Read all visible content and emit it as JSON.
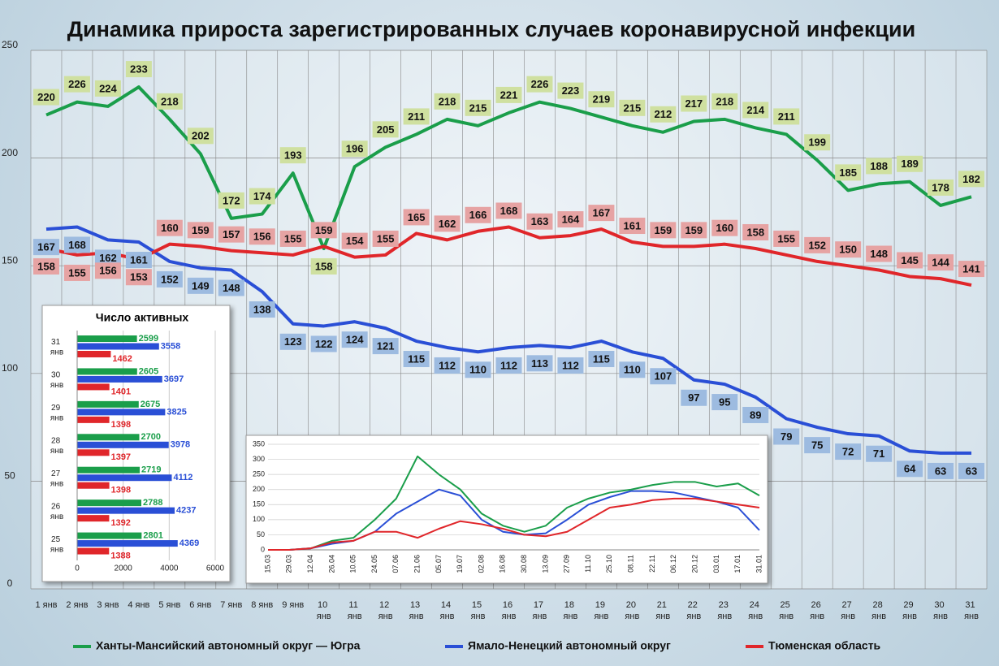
{
  "chart_data": [
    {
      "type": "line",
      "title": "Динамика прироста зарегистрированных случаев коронавирусной инфекции",
      "categories": [
        "1 янв",
        "2 янв",
        "3 янв",
        "4 янв",
        "5 янв",
        "6 янв",
        "7 янв",
        "8 янв",
        "9 янв",
        "10 янв",
        "11 янв",
        "12 янв",
        "13 янв",
        "14 янв",
        "15 янв",
        "16 янв",
        "17 янв",
        "18 янв",
        "19 янв",
        "20 янв",
        "21 янв",
        "22 янв",
        "23 янв",
        "24 янв",
        "25 янв",
        "26 янв",
        "27 янв",
        "28 янв",
        "29 янв",
        "30 янв",
        "31 янв"
      ],
      "ylim": [
        0,
        250
      ],
      "yticks": [
        0,
        50,
        100,
        150,
        200,
        250
      ],
      "grid": true,
      "legend": "bottom",
      "series": [
        {
          "name": "Ханты-Мансийский автономный округ — Югра",
          "color": "#1a9e4a",
          "label_color": "#cfe0a0",
          "values": [
            220,
            226,
            224,
            233,
            218,
            202,
            172,
            174,
            193,
            158,
            196,
            205,
            211,
            218,
            215,
            221,
            226,
            223,
            219,
            215,
            212,
            217,
            218,
            214,
            211,
            199,
            185,
            188,
            189,
            178,
            182
          ]
        },
        {
          "name": "Ямало-Ненецкий автономный округ",
          "color": "#2a4fd6",
          "label_color": "#9dbbe0",
          "values": [
            167,
            168,
            162,
            161,
            152,
            149,
            148,
            138,
            123,
            122,
            124,
            121,
            115,
            112,
            110,
            112,
            113,
            112,
            115,
            110,
            107,
            97,
            95,
            89,
            79,
            75,
            72,
            71,
            64,
            63,
            63
          ]
        },
        {
          "name": "Тюменская область",
          "color": "#e0262a",
          "label_color": "#e6a3a3",
          "values": [
            158,
            155,
            156,
            153,
            160,
            159,
            157,
            156,
            155,
            159,
            154,
            155,
            165,
            162,
            166,
            168,
            163,
            164,
            167,
            161,
            159,
            159,
            160,
            158,
            155,
            152,
            150,
            148,
            145,
            144,
            141
          ]
        }
      ]
    },
    {
      "type": "bar",
      "orientation": "horizontal",
      "title": "Число активных",
      "categories": [
        "31 янв",
        "30 янв",
        "29 янв",
        "28 янв",
        "27 янв",
        "26 янв",
        "25 янв"
      ],
      "xlim": [
        0,
        6000
      ],
      "xticks": [
        0,
        2000,
        4000,
        6000
      ],
      "series": [
        {
          "color": "#1a9e4a",
          "values": [
            2599,
            2605,
            2675,
            2700,
            2719,
            2788,
            2801
          ]
        },
        {
          "color": "#2a4fd6",
          "values": [
            3558,
            3697,
            3825,
            3978,
            4112,
            4237,
            4369
          ]
        },
        {
          "color": "#e0262a",
          "values": [
            1462,
            1401,
            1398,
            1397,
            1398,
            1392,
            1388
          ]
        }
      ]
    },
    {
      "type": "line",
      "categories": [
        "15.03",
        "29.03",
        "12.04",
        "26.04",
        "10.05",
        "24.05",
        "07.06",
        "21.06",
        "05.07",
        "19.07",
        "02.08",
        "16.08",
        "30.08",
        "13.09",
        "27.09",
        "11.10",
        "25.10",
        "08.11",
        "22.11",
        "06.12",
        "20.12",
        "03.01",
        "17.01",
        "31.01"
      ],
      "ylim": [
        0,
        350
      ],
      "yticks": [
        0,
        50,
        100,
        150,
        200,
        250,
        300,
        350
      ],
      "grid": true,
      "series": [
        {
          "color": "#1a9e4a",
          "values": [
            0,
            0,
            5,
            30,
            40,
            100,
            170,
            310,
            250,
            200,
            120,
            80,
            60,
            80,
            140,
            170,
            190,
            200,
            215,
            225,
            225,
            210,
            220,
            180
          ]
        },
        {
          "color": "#2a4fd6",
          "values": [
            0,
            0,
            5,
            20,
            30,
            60,
            120,
            160,
            200,
            180,
            100,
            60,
            50,
            55,
            100,
            150,
            175,
            195,
            195,
            190,
            175,
            160,
            140,
            65
          ]
        },
        {
          "color": "#e0262a",
          "values": [
            0,
            0,
            5,
            25,
            30,
            60,
            60,
            40,
            70,
            95,
            85,
            70,
            50,
            45,
            60,
            100,
            140,
            150,
            165,
            170,
            170,
            160,
            150,
            140
          ]
        }
      ]
    }
  ]
}
